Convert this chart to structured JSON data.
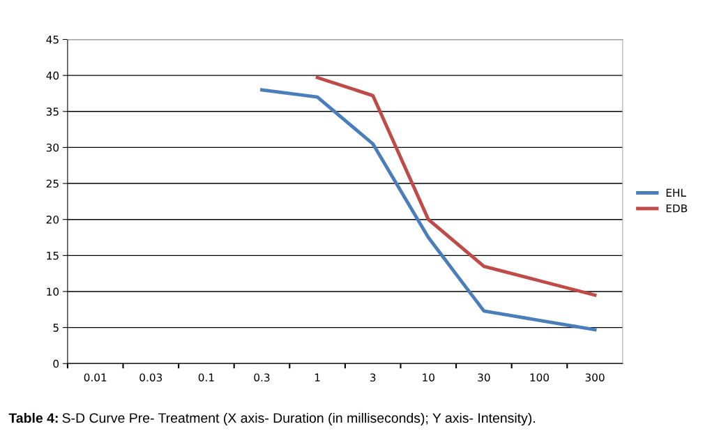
{
  "chart_data": {
    "type": "line",
    "categories": [
      "0.01",
      "0.03",
      "0.1",
      "0.3",
      "1",
      "3",
      "10",
      "30",
      "100",
      "300"
    ],
    "series": [
      {
        "name": "EHL",
        "color": "#4a7ebb",
        "values": [
          null,
          null,
          null,
          38,
          37,
          30.5,
          17.5,
          7.3,
          6,
          4.7
        ]
      },
      {
        "name": "EDB",
        "color": "#be4b48",
        "values": [
          null,
          null,
          null,
          null,
          39.7,
          37.2,
          20,
          13.5,
          11.5,
          9.5
        ]
      }
    ],
    "ylim": [
      0,
      45
    ],
    "yticks": [
      0,
      5,
      10,
      15,
      20,
      25,
      30,
      35,
      40,
      45
    ],
    "grid": "y",
    "legend": "right",
    "marker": "none",
    "line_style": "solid",
    "annotations": [
      "Table 4:",
      "S-D Curve Pre- Treatment (X axis- Duration (in milliseconds); Y axis- Intensity)."
    ]
  }
}
